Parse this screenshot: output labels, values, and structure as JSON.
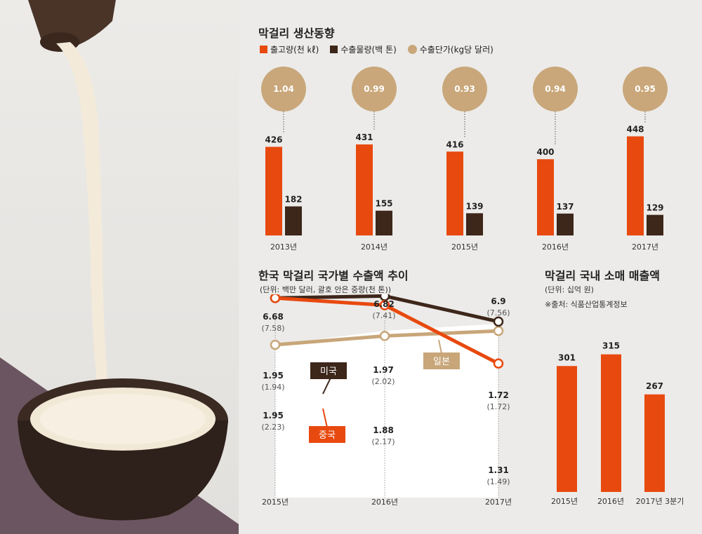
{
  "colors": {
    "orange": "#e8490f",
    "dark": "#3d261a",
    "tan": "#c9a77a",
    "tan_line": "#c8a679",
    "bg": "#ecebe9",
    "white": "#ffffff"
  },
  "charts": {
    "production": {
      "title": "막걸리 생산동향",
      "legend": [
        "출고량(천 ㎘)",
        "수출물량(백 톤)",
        "수출단가(kg당 달러)"
      ]
    },
    "exports": {
      "title": "한국 막걸리 국가별 수출액 추이",
      "unit": "(단위: 백만 달러, 괄호 안은 중량(천 톤))",
      "series_labels": {
        "japan": "일본",
        "usa": "미국",
        "china": "중국"
      }
    },
    "retail": {
      "title": "막걸리 국내 소매 매출액",
      "unit": "(단위: 십억 원)",
      "source": "※출처: 식품산업통계정보"
    }
  },
  "chart_data": [
    {
      "type": "bar",
      "title": "막걸리 생산동향",
      "categories": [
        "2013년",
        "2014년",
        "2015년",
        "2016년",
        "2017년"
      ],
      "series": [
        {
          "name": "출고량(천 ㎘)",
          "values": [
            426,
            431,
            416,
            400,
            448
          ]
        },
        {
          "name": "수출물량(백 톤)",
          "values": [
            182,
            155,
            139,
            137,
            129
          ]
        },
        {
          "name": "수출단가(kg당 달러)",
          "values": [
            "1.04",
            "0.99",
            "0.93",
            "0.94",
            "0.95"
          ]
        }
      ]
    },
    {
      "type": "line",
      "title": "한국 막걸리 국가별 수출액 추이",
      "categories": [
        "2015년",
        "2016년",
        "2017년"
      ],
      "series": [
        {
          "name": "일본",
          "values": [
            "6.68",
            "6.82",
            "6.9"
          ],
          "weights": [
            "(7.58)",
            "(7.41)",
            "(7.56)"
          ]
        },
        {
          "name": "미국",
          "values": [
            "1.95",
            "1.97",
            "1.72"
          ],
          "weights": [
            "(1.94)",
            "(2.02)",
            "(1.72)"
          ]
        },
        {
          "name": "중국",
          "values": [
            "1.95",
            "1.88",
            "1.31"
          ],
          "weights": [
            "(2.23)",
            "(2.17)",
            "(1.49)"
          ]
        }
      ]
    },
    {
      "type": "bar",
      "title": "막걸리 국내 소매 매출액",
      "categories": [
        "2015년",
        "2016년",
        "2017년 3분기"
      ],
      "values": [
        301,
        315,
        267
      ]
    }
  ]
}
